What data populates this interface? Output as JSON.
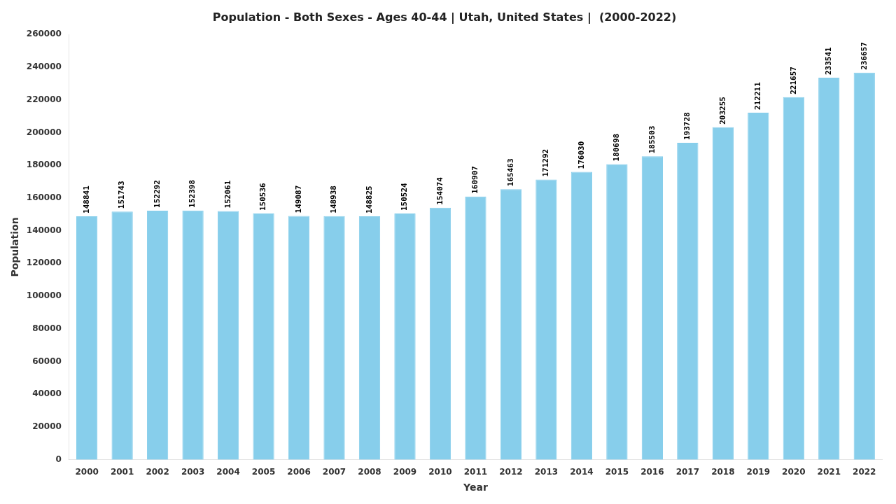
{
  "chart_data": {
    "type": "bar",
    "title": "Population - Both Sexes - Ages 40-44 | Utah, United States |  (2000-2022)",
    "xlabel": "Year",
    "ylabel": "Population",
    "categories": [
      "2000",
      "2001",
      "2002",
      "2003",
      "2004",
      "2005",
      "2006",
      "2007",
      "2008",
      "2009",
      "2010",
      "2011",
      "2012",
      "2013",
      "2014",
      "2015",
      "2016",
      "2017",
      "2018",
      "2019",
      "2020",
      "2021",
      "2022"
    ],
    "values": [
      148841,
      151743,
      152292,
      152398,
      152061,
      150536,
      149087,
      148938,
      148825,
      150524,
      154074,
      160907,
      165463,
      171292,
      176030,
      180698,
      185503,
      193728,
      203255,
      212211,
      221657,
      233541,
      236657
    ],
    "color": "#87CEEB",
    "ylim": [
      0,
      260000
    ],
    "yticks": [
      0,
      20000,
      40000,
      60000,
      80000,
      100000,
      120000,
      140000,
      160000,
      180000,
      200000,
      220000,
      240000,
      260000
    ],
    "grid": false,
    "data_labels": true
  }
}
